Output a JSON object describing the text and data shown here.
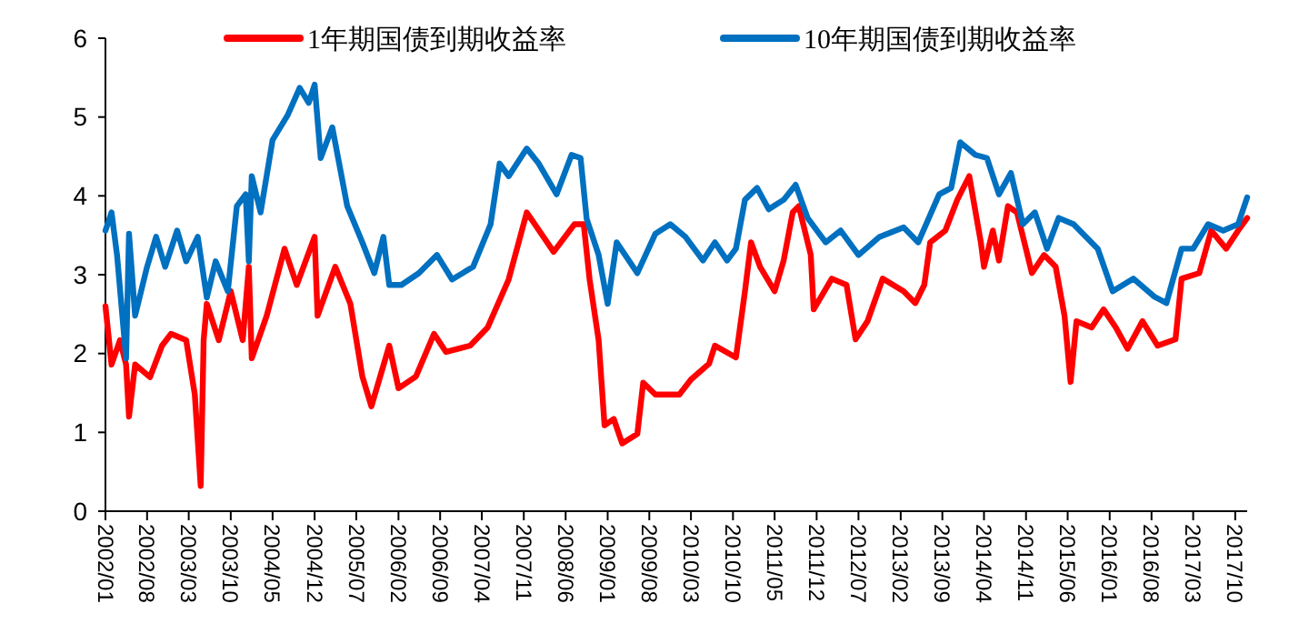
{
  "chart_data": {
    "type": "line",
    "legend": "top",
    "grid": false,
    "marker": "none",
    "line_style": "solid",
    "xlim": [
      "2002-01",
      "2017-12"
    ],
    "ylim": [
      0,
      6
    ],
    "yticks": [
      0,
      1,
      2,
      3,
      4,
      5,
      6
    ],
    "xticks": [
      {
        "value": "2002-01",
        "label": "2002/01"
      },
      {
        "value": "2002-08",
        "label": "2002/08"
      },
      {
        "value": "2003-03",
        "label": "2003/03"
      },
      {
        "value": "2003-10",
        "label": "2003/10"
      },
      {
        "value": "2004-05",
        "label": "2004/05"
      },
      {
        "value": "2004-12",
        "label": "2004/12"
      },
      {
        "value": "2005-07",
        "label": "2005/07"
      },
      {
        "value": "2006-02",
        "label": "2006/02"
      },
      {
        "value": "2006-09",
        "label": "2006/09"
      },
      {
        "value": "2007-04",
        "label": "2007/04"
      },
      {
        "value": "2007-11",
        "label": "2007/11"
      },
      {
        "value": "2008-06",
        "label": "2008/06"
      },
      {
        "value": "2009-01",
        "label": "2009/01"
      },
      {
        "value": "2009-08",
        "label": "2009/08"
      },
      {
        "value": "2010-03",
        "label": "2010/03"
      },
      {
        "value": "2010-10",
        "label": "2010/10"
      },
      {
        "value": "2011-05",
        "label": "2011/05"
      },
      {
        "value": "2011-12",
        "label": "2011/12"
      },
      {
        "value": "2012-07",
        "label": "2012/07"
      },
      {
        "value": "2013-02",
        "label": "2013/02"
      },
      {
        "value": "2013-09",
        "label": "2013/09"
      },
      {
        "value": "2014-04",
        "label": "2014/04"
      },
      {
        "value": "2014-11",
        "label": "2014/11"
      },
      {
        "value": "2015-06",
        "label": "2015/06"
      },
      {
        "value": "2016-01",
        "label": "2016/01"
      },
      {
        "value": "2016-08",
        "label": "2016/08"
      },
      {
        "value": "2017-03",
        "label": "2017/03"
      },
      {
        "value": "2017-10",
        "label": "2017/10"
      }
    ],
    "series": [
      {
        "name": "1年期国债到期收益率",
        "color": "#ff0000",
        "x": [
          "2002-01",
          "2002-02",
          "2002-03-16",
          "2002-04-16",
          "2002-05",
          "2002-06",
          "2002-08-16",
          "2002-10-16",
          "2002-12",
          "2003-02-16",
          "2003-04",
          "2003-05",
          "2003-05-16",
          "2003-06",
          "2003-08",
          "2003-10",
          "2003-12",
          "2004-01",
          "2004-01-16",
          "2004-04",
          "2004-07",
          "2004-09",
          "2004-12",
          "2004-12-16",
          "2005-03-16",
          "2005-06",
          "2005-08",
          "2005-09-16",
          "2005-12-16",
          "2006-02",
          "2006-05",
          "2006-08",
          "2006-10",
          "2007-02",
          "2007-05",
          "2007-08-16",
          "2007-11-16",
          "2008-04",
          "2008-07-16",
          "2008-09",
          "2008-10",
          "2008-11-16",
          "2008-12-16",
          "2009-02",
          "2009-03-16",
          "2009-06",
          "2009-07",
          "2009-09",
          "2010-01",
          "2010-03",
          "2010-06",
          "2010-07",
          "2010-10-16",
          "2010-12",
          "2011-01",
          "2011-02-16",
          "2011-05",
          "2011-06-16",
          "2011-08",
          "2011-09",
          "2011-11",
          "2011-11-16",
          "2012-02-16",
          "2012-05",
          "2012-06-16",
          "2012-08-16",
          "2012-11",
          "2013-02-16",
          "2013-04-16",
          "2013-06",
          "2013-07",
          "2013-09-16",
          "2013-11-16",
          "2014-01-16",
          "2014-03-16",
          "2014-04",
          "2014-05-16",
          "2014-06-16",
          "2014-08",
          "2014-09-16",
          "2014-12",
          "2015-02",
          "2015-04",
          "2015-05-16",
          "2015-06-16",
          "2015-07-16",
          "2015-10",
          "2015-12",
          "2016-02",
          "2016-04",
          "2016-06-16",
          "2016-09",
          "2016-12",
          "2017-01",
          "2017-04",
          "2017-06",
          "2017-08-16",
          "2017-10-16",
          "2017-12"
        ],
        "values": [
          2.6,
          1.86,
          2.17,
          1.86,
          1.2,
          1.86,
          1.7,
          2.1,
          2.25,
          2.17,
          1.48,
          0.32,
          2.17,
          2.63,
          2.17,
          2.79,
          2.17,
          3.1,
          1.94,
          2.48,
          3.33,
          2.87,
          3.48,
          2.48,
          3.1,
          2.63,
          1.71,
          1.33,
          2.1,
          1.56,
          1.71,
          2.25,
          2.02,
          2.1,
          2.33,
          2.94,
          3.79,
          3.29,
          3.64,
          3.64,
          2.94,
          2.17,
          1.09,
          1.17,
          0.86,
          0.98,
          1.63,
          1.48,
          1.48,
          1.67,
          1.87,
          2.1,
          1.95,
          2.79,
          3.41,
          3.1,
          2.79,
          3.18,
          3.79,
          3.87,
          3.25,
          2.56,
          2.95,
          2.87,
          2.18,
          2.41,
          2.95,
          2.79,
          2.64,
          2.87,
          3.41,
          3.56,
          3.95,
          4.25,
          3.41,
          3.1,
          3.56,
          3.18,
          3.87,
          3.79,
          3.02,
          3.25,
          3.1,
          2.48,
          1.64,
          2.41,
          2.33,
          2.56,
          2.33,
          2.06,
          2.41,
          2.1,
          2.18,
          2.95,
          3.02,
          3.56,
          3.33,
          3.56,
          3.72
        ]
      },
      {
        "name": "10年期国债到期收益率",
        "color": "#0070c0",
        "x": [
          "2002-01",
          "2002-02",
          "2002-03",
          "2002-04-16",
          "2002-05",
          "2002-06",
          "2002-08",
          "2002-09-16",
          "2002-11",
          "2003-01",
          "2003-02-16",
          "2003-04-16",
          "2003-06",
          "2003-07-16",
          "2003-09-16",
          "2003-11",
          "2003-12-16",
          "2004-01",
          "2004-01-16",
          "2004-03",
          "2004-05",
          "2004-07-16",
          "2004-09-16",
          "2004-11",
          "2004-12",
          "2005-01",
          "2005-03",
          "2005-05-16",
          "2005-08",
          "2005-10",
          "2005-11-16",
          "2005-12-16",
          "2006-02-16",
          "2006-05-16",
          "2006-08-16",
          "2006-11",
          "2007-02-16",
          "2007-05-16",
          "2007-07",
          "2007-08-16",
          "2007-11-16",
          "2008-01-16",
          "2008-04-16",
          "2008-07",
          "2008-08-16",
          "2008-09-16",
          "2008-11-16",
          "2009-01",
          "2009-02-16",
          "2009-06",
          "2009-09",
          "2009-11-16",
          "2010-02",
          "2010-05",
          "2010-07",
          "2010-09",
          "2010-10-16",
          "2010-12",
          "2011-02",
          "2011-04",
          "2011-06-16",
          "2011-08-16",
          "2011-10-16",
          "2012-01-16",
          "2012-04",
          "2012-07",
          "2012-10-16",
          "2013-02-16",
          "2013-05",
          "2013-08-16",
          "2013-10-16",
          "2013-12",
          "2014-02-16",
          "2014-04-16",
          "2014-06-16",
          "2014-08-16",
          "2014-10-16",
          "2014-12-16",
          "2015-02-16",
          "2015-04-16",
          "2015-07",
          "2015-11",
          "2016-01-16",
          "2016-05",
          "2016-08-16",
          "2016-10-16",
          "2017-01",
          "2017-03",
          "2017-05-16",
          "2017-08",
          "2017-10-16",
          "2017-12"
        ],
        "values": [
          3.56,
          3.79,
          3.25,
          1.94,
          3.52,
          2.48,
          3.1,
          3.48,
          3.1,
          3.56,
          3.17,
          3.48,
          2.71,
          3.17,
          2.79,
          3.87,
          4.02,
          3.17,
          4.25,
          3.79,
          4.71,
          5.02,
          5.37,
          5.18,
          5.41,
          4.48,
          4.87,
          3.87,
          3.41,
          3.02,
          3.48,
          2.87,
          2.87,
          3.02,
          3.25,
          2.94,
          3.1,
          3.64,
          4.41,
          4.25,
          4.6,
          4.41,
          4.02,
          4.52,
          4.48,
          3.71,
          3.25,
          2.63,
          3.41,
          3.02,
          3.52,
          3.64,
          3.48,
          3.18,
          3.41,
          3.18,
          3.33,
          3.95,
          4.1,
          3.83,
          3.95,
          4.14,
          3.72,
          3.41,
          3.56,
          3.25,
          3.48,
          3.6,
          3.41,
          4.02,
          4.1,
          4.68,
          4.52,
          4.48,
          4.02,
          4.29,
          3.64,
          3.79,
          3.33,
          3.72,
          3.64,
          3.33,
          2.79,
          2.95,
          2.72,
          2.64,
          3.33,
          3.33,
          3.64,
          3.56,
          3.64,
          3.98
        ]
      }
    ]
  }
}
